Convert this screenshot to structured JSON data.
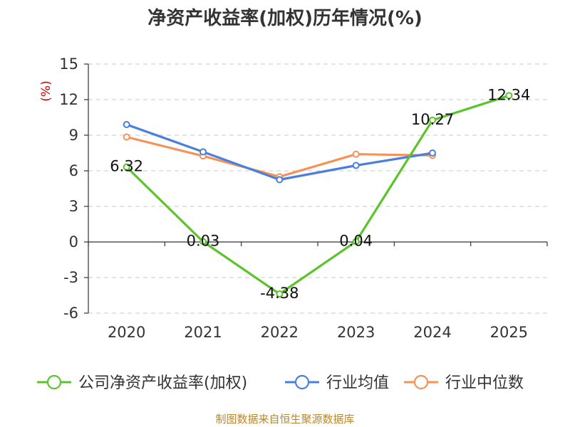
{
  "chart_data": {
    "type": "line",
    "title": "净资产收益率(加权)历年情况(%)",
    "y_unit": "(%)",
    "ylim": [
      -6,
      15
    ],
    "yticks": [
      15,
      12,
      9,
      6,
      3,
      0,
      -3,
      -6
    ],
    "categories": [
      "2020",
      "2021",
      "2022",
      "2023",
      "2024",
      "2025"
    ],
    "grid": true,
    "legend_position": "bottom",
    "series": [
      {
        "name": "公司净资产收益率(加权)",
        "color": "#5bc42a",
        "values": [
          6.32,
          0.03,
          -4.38,
          0.04,
          10.27,
          12.34
        ],
        "labels": [
          "6.32",
          "0.03",
          "-4.38",
          "0.04",
          "10.27",
          "12.34"
        ]
      },
      {
        "name": "行业均值",
        "color": "#4a7fdc",
        "values": [
          9.9,
          7.6,
          5.25,
          6.45,
          7.5,
          null
        ]
      },
      {
        "name": "行业中位数",
        "color": "#f5925a",
        "values": [
          8.85,
          7.25,
          5.5,
          7.4,
          7.3,
          null
        ]
      }
    ]
  },
  "source": "制图数据来自恒生聚源数据库"
}
